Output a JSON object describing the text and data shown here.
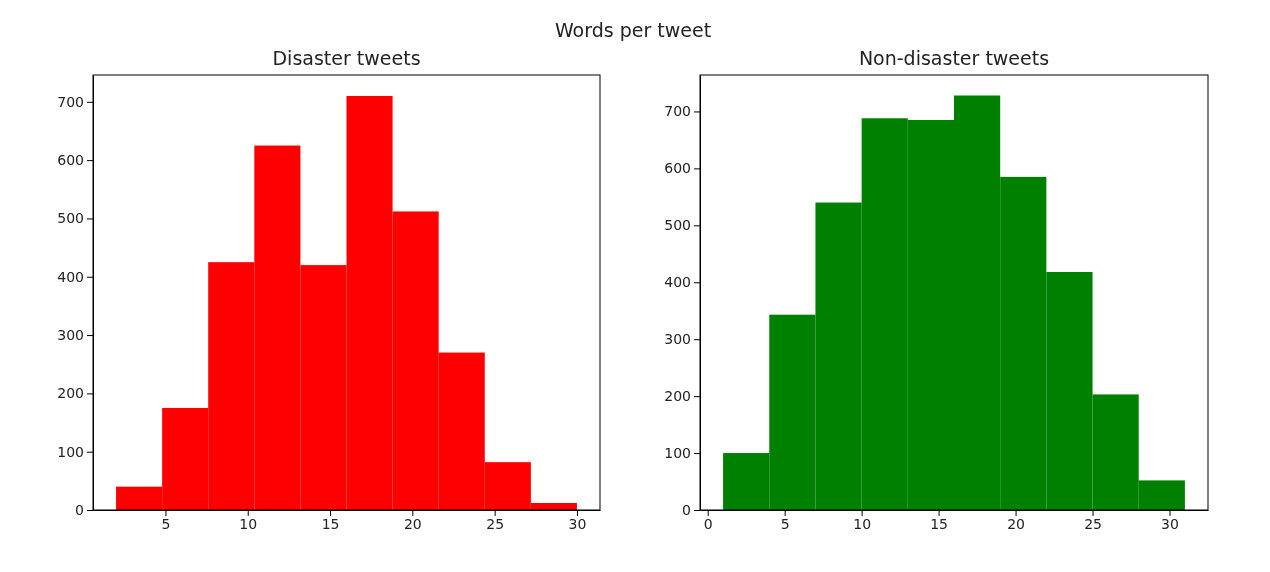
{
  "chart_data": [
    {
      "type": "histogram",
      "title": "Disaster tweets",
      "annotations": [
        "Words per tweet"
      ],
      "color": "#ff0000",
      "bins": [
        2,
        4.8,
        7.6,
        10.4,
        13.2,
        16,
        18.8,
        21.6,
        24.4,
        27.2,
        30
      ],
      "values": [
        40,
        175,
        425,
        625,
        420,
        710,
        512,
        270,
        82,
        12
      ],
      "xlim": [
        0.6,
        31.4
      ],
      "ylim": [
        0,
        746
      ],
      "xticks": [
        5,
        10,
        15,
        20,
        25,
        30
      ],
      "yticks": [
        0,
        100,
        200,
        300,
        400,
        500,
        600,
        700
      ],
      "grid": false
    },
    {
      "type": "histogram",
      "title": "Non-disaster tweets",
      "color": "#008000",
      "bins": [
        1,
        4,
        7,
        10,
        13,
        16,
        19,
        22,
        25,
        28,
        31
      ],
      "values": [
        100,
        343,
        540,
        688,
        685,
        728,
        585,
        418,
        203,
        52
      ],
      "xlim": [
        -0.5,
        32.5
      ],
      "ylim": [
        0,
        764
      ],
      "xticks": [
        0,
        5,
        10,
        15,
        20,
        25,
        30
      ],
      "yticks": [
        0,
        100,
        200,
        300,
        400,
        500,
        600,
        700
      ],
      "grid": false
    }
  ]
}
